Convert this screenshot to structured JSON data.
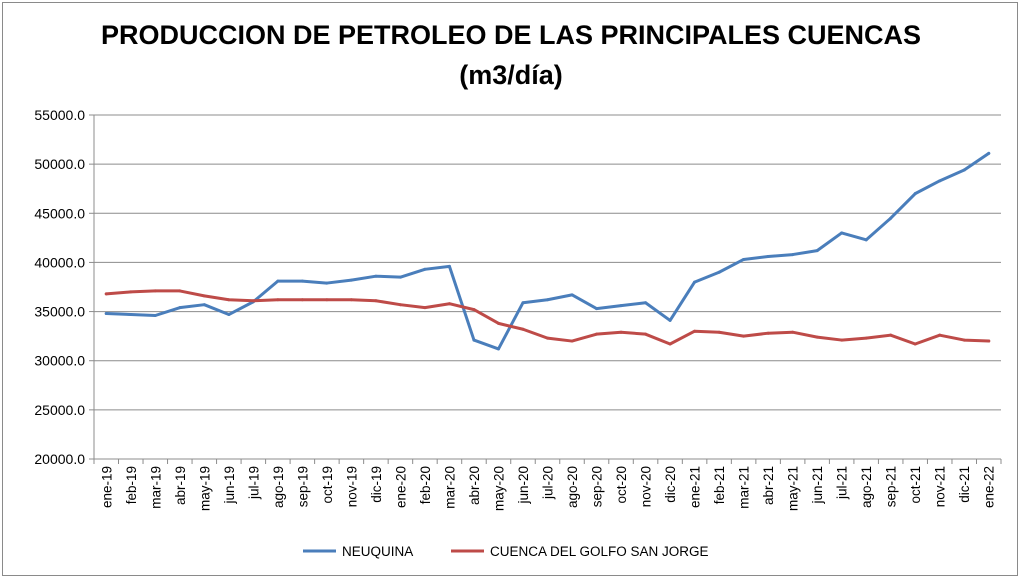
{
  "chart_data": {
    "type": "line",
    "title": "PRODUCCION DE PETROLEO DE LAS PRINCIPALES CUENCAS",
    "subtitle": "(m3/día)",
    "xlabel": "",
    "ylabel": "",
    "ylim": [
      20000,
      55000
    ],
    "yticks": [
      "20000.0",
      "25000.0",
      "30000.0",
      "35000.0",
      "40000.0",
      "45000.0",
      "50000.0",
      "55000.0"
    ],
    "grid": true,
    "legend_position": "bottom",
    "categories": [
      "ene-19",
      "feb-19",
      "mar-19",
      "abr-19",
      "may-19",
      "jun-19",
      "jul-19",
      "ago-19",
      "sep-19",
      "oct-19",
      "nov-19",
      "dic-19",
      "ene-20",
      "feb-20",
      "mar-20",
      "abr-20",
      "may-20",
      "jun-20",
      "jul-20",
      "ago-20",
      "sep-20",
      "oct-20",
      "nov-20",
      "dic-20",
      "ene-21",
      "feb-21",
      "mar-21",
      "abr-21",
      "may-21",
      "jun-21",
      "jul-21",
      "ago-21",
      "sep-21",
      "oct-21",
      "nov-21",
      "dic-21",
      "ene-22"
    ],
    "series": [
      {
        "name": "NEUQUINA",
        "color": "#4a7ebb",
        "values": [
          34800,
          34700,
          34600,
          35400,
          35700,
          34700,
          36000,
          38100,
          38100,
          37900,
          38200,
          38600,
          38500,
          39300,
          39600,
          32100,
          31200,
          35900,
          36200,
          36700,
          35300,
          35600,
          35900,
          34100,
          38000,
          39000,
          40300,
          40600,
          40800,
          41200,
          43000,
          42300,
          44500,
          47000,
          48300,
          49400,
          51100
        ]
      },
      {
        "name": "CUENCA DEL GOLFO SAN JORGE",
        "color": "#be4b48",
        "values": [
          36800,
          37000,
          37100,
          37100,
          36600,
          36200,
          36100,
          36200,
          36200,
          36200,
          36200,
          36100,
          35700,
          35400,
          35800,
          35200,
          33800,
          33200,
          32300,
          32000,
          32700,
          32900,
          32700,
          31700,
          33000,
          32900,
          32500,
          32800,
          32900,
          32400,
          32100,
          32300,
          32600,
          31700,
          32600,
          32100,
          32000
        ]
      }
    ]
  }
}
